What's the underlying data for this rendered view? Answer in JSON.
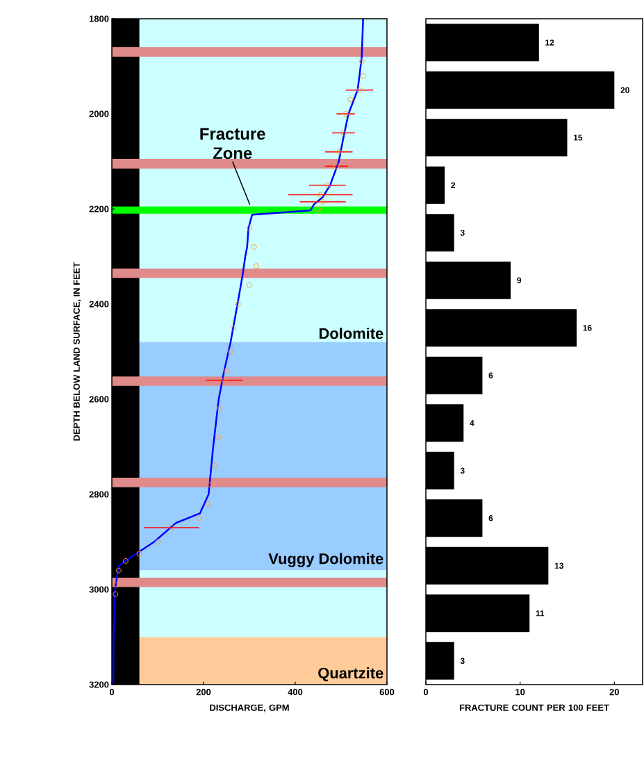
{
  "chart_data": [
    {
      "type": "line",
      "xlabel": "DISCHARGE, GPM",
      "ylabel": "DEPTH BELOW LAND SURFACE, IN FEET",
      "xlim": [
        0,
        600
      ],
      "ylim": [
        3200,
        1800
      ],
      "xticks": [
        0,
        200,
        400,
        600
      ],
      "yticks": [
        1800,
        2000,
        2200,
        2400,
        2600,
        2800,
        3000,
        3200
      ],
      "series": [
        {
          "type": "line",
          "color": "#0000ff",
          "x": [
            548,
            545,
            540,
            536,
            516,
            505,
            495,
            476,
            460,
            441,
            433,
            306,
            298,
            295,
            291,
            285,
            274,
            259,
            245,
            233,
            221,
            211,
            192,
            140,
            92,
            45,
            15,
            7,
            5,
            6,
            4,
            3
          ],
          "values": [
            1800,
            1880,
            1920,
            1950,
            2000,
            2050,
            2100,
            2150,
            2175,
            2190,
            2203,
            2212,
            2240,
            2280,
            2300,
            2340,
            2400,
            2480,
            2540,
            2600,
            2700,
            2800,
            2840,
            2860,
            2900,
            2930,
            2950,
            3000,
            3020,
            3050,
            3080,
            3200
          ]
        },
        {
          "type": "scatter",
          "color": "#ff9933",
          "marker": "circle",
          "x": [
            545,
            548,
            540,
            520,
            510,
            505,
            495,
            490,
            470,
            455,
            460,
            450,
            300,
            310,
            315,
            300,
            275,
            265,
            260,
            250,
            245,
            235,
            232,
            225,
            215,
            210,
            190,
            130,
            100,
            60,
            30,
            15,
            10,
            8
          ],
          "values": [
            1890,
            1920,
            1950,
            1970,
            2000,
            2040,
            2080,
            2110,
            2150,
            2170,
            2185,
            2200,
            2240,
            2280,
            2320,
            2360,
            2400,
            2450,
            2500,
            2540,
            2560,
            2620,
            2680,
            2740,
            2780,
            2820,
            2850,
            2870,
            2900,
            2925,
            2940,
            2960,
            2990,
            3010
          ],
          "xerrors": [
            null,
            null,
            30,
            null,
            20,
            25,
            30,
            25,
            40,
            70,
            50,
            null,
            null,
            null,
            null,
            null,
            null,
            null,
            null,
            null,
            40,
            null,
            null,
            null,
            null,
            null,
            null,
            60,
            null,
            null,
            null,
            null,
            null,
            null
          ]
        }
      ],
      "bands": [
        {
          "axis": "y",
          "from": 1800,
          "to": 2480,
          "color": "#ccffff",
          "label": "Dolomite"
        },
        {
          "axis": "y",
          "from": 2480,
          "to": 2960,
          "color": "#99ccff",
          "label": "Vuggy Dolomite"
        },
        {
          "axis": "y",
          "from": 2960,
          "to": 3100,
          "color": "#ccffff"
        },
        {
          "axis": "y",
          "from": 3100,
          "to": 3200,
          "color": "#ffcc99",
          "label": "Quartzite"
        },
        {
          "axis": "x",
          "from": 0,
          "to": 60,
          "color": "#000000"
        },
        {
          "axis": "y",
          "from": 1860,
          "to": 1880,
          "color": "#e08a8a"
        },
        {
          "axis": "y",
          "from": 2095,
          "to": 2115,
          "color": "#e08a8a"
        },
        {
          "axis": "y",
          "from": 2325,
          "to": 2345,
          "color": "#e08a8a"
        },
        {
          "axis": "y",
          "from": 2552,
          "to": 2572,
          "color": "#e08a8a"
        },
        {
          "axis": "y",
          "from": 2765,
          "to": 2785,
          "color": "#e08a8a"
        },
        {
          "axis": "y",
          "from": 2975,
          "to": 2995,
          "color": "#e08a8a"
        },
        {
          "axis": "y",
          "from": 2195,
          "to": 2210,
          "color": "#00ff00"
        }
      ],
      "annotations": [
        {
          "text": "Fracture Zone",
          "x": 301,
          "y": 2191
        }
      ]
    },
    {
      "type": "bar",
      "orientation": "horizontal",
      "xlabel": "FRACTURE COUNT PER 100 FEET",
      "categories": [
        null,
        null,
        null,
        null,
        null,
        null,
        null,
        null,
        null,
        null,
        null,
        null,
        null,
        null
      ],
      "values": [
        12,
        20,
        15,
        2,
        3,
        9,
        16,
        6,
        4,
        3,
        6,
        13,
        11,
        3
      ],
      "color": "#000000",
      "xlim": [
        0,
        23
      ],
      "xticks": [
        0,
        10,
        20
      ],
      "data_labels": true
    }
  ]
}
